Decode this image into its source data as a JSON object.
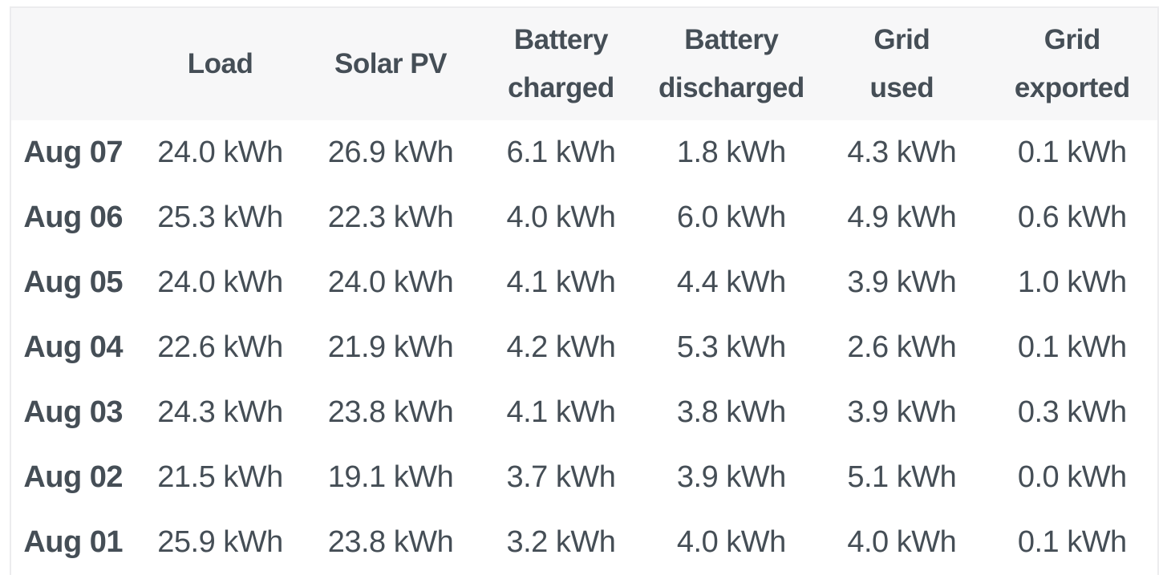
{
  "table": {
    "unit": "kWh",
    "columns": [
      {
        "key": "date",
        "label": ""
      },
      {
        "key": "load",
        "label": "Load"
      },
      {
        "key": "solar_pv",
        "label": "Solar PV"
      },
      {
        "key": "battery_charged",
        "label": "Battery\ncharged"
      },
      {
        "key": "battery_discharged",
        "label": "Battery\ndischarged"
      },
      {
        "key": "grid_used",
        "label": "Grid\nused"
      },
      {
        "key": "grid_exported",
        "label": "Grid\nexported"
      }
    ],
    "rows": [
      {
        "date": "Aug 07",
        "load": "24.0 kWh",
        "solar_pv": "26.9 kWh",
        "battery_charged": "6.1 kWh",
        "battery_discharged": "1.8 kWh",
        "grid_used": "4.3 kWh",
        "grid_exported": "0.1 kWh"
      },
      {
        "date": "Aug 06",
        "load": "25.3 kWh",
        "solar_pv": "22.3 kWh",
        "battery_charged": "4.0 kWh",
        "battery_discharged": "6.0 kWh",
        "grid_used": "4.9 kWh",
        "grid_exported": "0.6 kWh"
      },
      {
        "date": "Aug 05",
        "load": "24.0 kWh",
        "solar_pv": "24.0 kWh",
        "battery_charged": "4.1 kWh",
        "battery_discharged": "4.4 kWh",
        "grid_used": "3.9 kWh",
        "grid_exported": "1.0 kWh"
      },
      {
        "date": "Aug 04",
        "load": "22.6 kWh",
        "solar_pv": "21.9 kWh",
        "battery_charged": "4.2 kWh",
        "battery_discharged": "5.3 kWh",
        "grid_used": "2.6 kWh",
        "grid_exported": "0.1 kWh"
      },
      {
        "date": "Aug 03",
        "load": "24.3 kWh",
        "solar_pv": "23.8 kWh",
        "battery_charged": "4.1 kWh",
        "battery_discharged": "3.8 kWh",
        "grid_used": "3.9 kWh",
        "grid_exported": "0.3 kWh"
      },
      {
        "date": "Aug 02",
        "load": "21.5 kWh",
        "solar_pv": "19.1 kWh",
        "battery_charged": "3.7 kWh",
        "battery_discharged": "3.9 kWh",
        "grid_used": "5.1 kWh",
        "grid_exported": "0.0 kWh"
      },
      {
        "date": "Aug 01",
        "load": "25.9 kWh",
        "solar_pv": "23.8 kWh",
        "battery_charged": "3.2 kWh",
        "battery_discharged": "4.0 kWh",
        "grid_used": "4.0 kWh",
        "grid_exported": "0.1 kWh"
      }
    ]
  },
  "colors": {
    "text": "#454e56",
    "header_bg": "#f7f7f8",
    "border": "#ececee",
    "row_bg": "#ffffff"
  }
}
